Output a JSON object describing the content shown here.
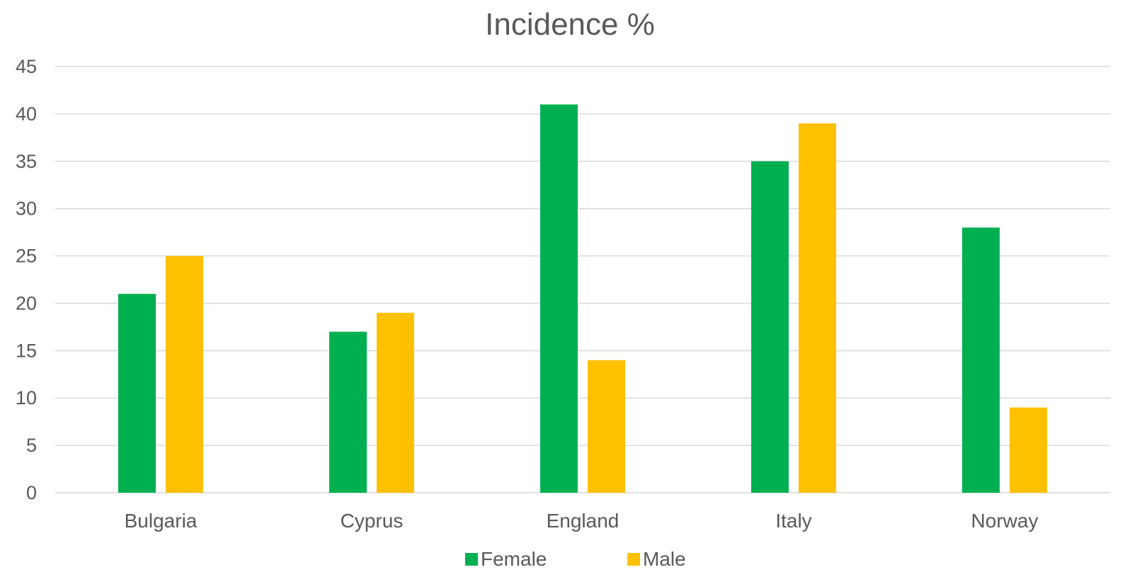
{
  "chart_data": {
    "type": "bar",
    "title": "Incidence %",
    "xlabel": "",
    "ylabel": "",
    "categories": [
      "Bulgaria",
      "Cyprus",
      "England",
      "Italy",
      "Norway"
    ],
    "series": [
      {
        "name": "Female",
        "color": "#00b050",
        "values": [
          21,
          17,
          41,
          35,
          28
        ]
      },
      {
        "name": "Male",
        "color": "#ffc000",
        "values": [
          25,
          19,
          14,
          39,
          9
        ]
      }
    ],
    "ylim": [
      0,
      45
    ],
    "yticks": [
      "0",
      "5",
      "10",
      "15",
      "20",
      "25",
      "30",
      "35",
      "40",
      "45"
    ],
    "grid": true,
    "legend_position": "bottom"
  }
}
